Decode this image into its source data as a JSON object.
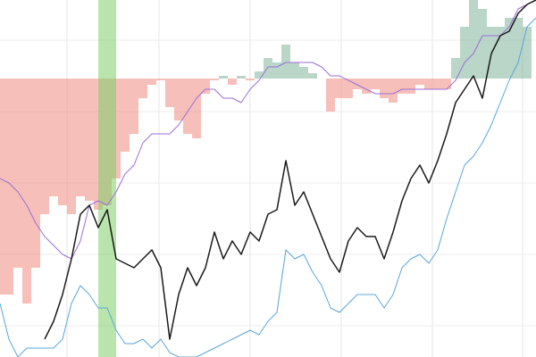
{
  "chart_data": {
    "type": "line",
    "x": [
      0,
      10,
      20,
      30,
      40,
      50,
      60,
      70,
      80,
      90,
      100,
      110,
      120,
      130,
      140,
      150,
      160,
      170,
      180,
      190,
      200,
      210,
      220,
      230,
      240,
      250,
      260,
      270,
      280,
      290,
      300,
      310,
      320,
      330,
      340,
      350,
      360,
      370,
      380,
      390,
      400,
      410,
      420,
      430,
      440,
      450,
      460,
      470,
      480,
      490,
      500,
      510,
      520,
      530,
      540,
      550,
      560,
      570,
      580,
      590,
      600
    ],
    "xlim": [
      0,
      600
    ],
    "ylim": [
      0,
      100
    ],
    "xticks": [
      75,
      178,
      280,
      382,
      484,
      585
    ],
    "yticks": [
      8.75,
      28.75,
      48.75,
      68.75,
      88.75
    ],
    "grid": true,
    "highlight": [
      110,
      130
    ],
    "highlight_color": "#7fd067",
    "series": [
      {
        "kind": "area",
        "baseline": 78,
        "color": "#f08a80",
        "color_above": "#7fb59a",
        "values": [
          17.5,
          17.5,
          25,
          15,
          25,
          40,
          45,
          42.5,
          40,
          45,
          43.75,
          41.25,
          42.5,
          50,
          57.5,
          62.5,
          72.5,
          76.25,
          77.5,
          70,
          66.25,
          62.5,
          61.25,
          73.75,
          77.5,
          78.75,
          76.25,
          78.75,
          77.5,
          80,
          83.75,
          82.5,
          87.5,
          82.5,
          81.25,
          79.5,
          78,
          68.75,
          72.5,
          72.5,
          75,
          73.75,
          75,
          72.5,
          71.25,
          73.75,
          73.75,
          76.25,
          75,
          75,
          75,
          83.75,
          92.5,
          100,
          97.5,
          92.5,
          92.5,
          95,
          95,
          92.5,
          78
        ]
      },
      {
        "kind": "line",
        "color": "#9b6fd6",
        "values": [
          50,
          48.75,
          46.25,
          42.5,
          37.5,
          33.75,
          31.25,
          28.75,
          27.5,
          32.5,
          42.5,
          43.75,
          42.5,
          46.25,
          51.25,
          53.75,
          60,
          62.5,
          62.5,
          62.5,
          65,
          68.75,
          72.5,
          75,
          75,
          72.5,
          72.5,
          71.25,
          75,
          77.5,
          81.25,
          81.25,
          82.5,
          82.5,
          82.5,
          82.5,
          81.25,
          78.75,
          78.75,
          77.5,
          76.25,
          75,
          73.75,
          73.75,
          73.75,
          75,
          75,
          75,
          75,
          75,
          75,
          77.5,
          82.5,
          85,
          90,
          90,
          90,
          92.5,
          97.5,
          98.75,
          100
        ]
      },
      {
        "kind": "line",
        "color": "#5aa5dc",
        "values": [
          15,
          5,
          0,
          2.5,
          2.5,
          2.5,
          2.5,
          5,
          15,
          20,
          17.5,
          13.75,
          13.75,
          7.5,
          3.75,
          3.75,
          5,
          2.5,
          5,
          1.25,
          0,
          0,
          0,
          1.25,
          2.5,
          3.75,
          5,
          6.25,
          7.5,
          6.25,
          10,
          12.5,
          30,
          27.5,
          28.75,
          23.75,
          20,
          13.75,
          12.5,
          15,
          17.5,
          17.5,
          17.5,
          13.75,
          17.5,
          25,
          27.5,
          28.75,
          26.25,
          30,
          38.75,
          46.25,
          53.75,
          56.25,
          60,
          65,
          71.25,
          77.5,
          82.5,
          92.5,
          95
        ]
      },
      {
        "kind": "line",
        "color": "#1a1a1a",
        "values": [
          null,
          null,
          null,
          null,
          null,
          5,
          10,
          17.5,
          27.5,
          40,
          42.5,
          36.25,
          41.25,
          27.5,
          26.25,
          25,
          27.5,
          30,
          25,
          5,
          17.5,
          25,
          20,
          25,
          35,
          27.5,
          32.5,
          28.75,
          35,
          32.5,
          40,
          41.25,
          55,
          42.5,
          46.25,
          40,
          33.75,
          27.5,
          23.75,
          32.5,
          36.25,
          33.75,
          33.75,
          27.5,
          35,
          43.75,
          50,
          53.75,
          48.75,
          55,
          62.5,
          71.25,
          75,
          78.75,
          72.5,
          85,
          90,
          91.25,
          96.25,
          98.75,
          100
        ]
      }
    ]
  }
}
